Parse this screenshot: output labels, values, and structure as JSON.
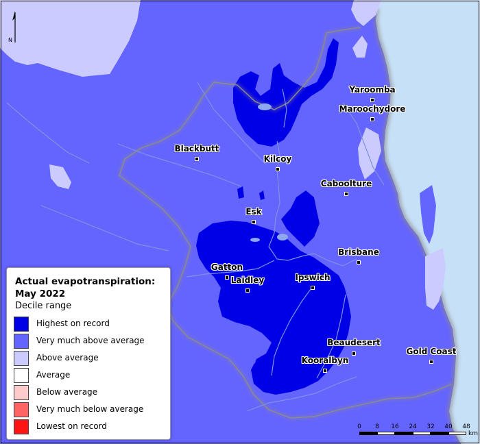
{
  "legend": {
    "title": "Actual evapotranspiration: May 2022",
    "subtitle": "Decile range",
    "items": [
      {
        "label": "Highest on record",
        "color": "#0000e6"
      },
      {
        "label": "Very much above average",
        "color": "#6464ff"
      },
      {
        "label": "Above average",
        "color": "#cbcbff"
      },
      {
        "label": "Average",
        "color": "#ffffff"
      },
      {
        "label": "Below average",
        "color": "#ffcbcb"
      },
      {
        "label": "Very much below average",
        "color": "#ff6464"
      },
      {
        "label": "Lowest on record",
        "color": "#ff1414"
      }
    ]
  },
  "places": [
    "Yaroomba",
    "Maroochydore",
    "Blackbutt",
    "Kilcoy",
    "Caboolture",
    "Esk",
    "Brisbane",
    "Gatton",
    "Laidley",
    "Ipswich",
    "Beaudesert",
    "Gold Coast",
    "Kooralbyn"
  ],
  "scale": {
    "ticks": [
      "0",
      "8",
      "16",
      "24",
      "32",
      "40",
      "48"
    ],
    "unit": "km"
  },
  "north_label": "N",
  "colors": {
    "ocean": "#c6e0f7",
    "land_base": "#6464ff",
    "coast_shadow": "#8a8a8a",
    "boundary": "#8c8c8c",
    "rivers": "#7f92e0"
  }
}
